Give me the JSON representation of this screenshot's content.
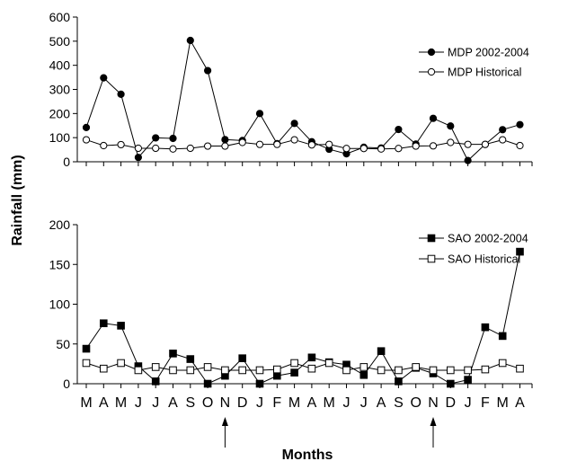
{
  "chart_data": [
    {
      "type": "line",
      "categories": [
        "M",
        "A",
        "M",
        "J",
        "J",
        "A",
        "S",
        "O",
        "N",
        "D",
        "J",
        "F",
        "M",
        "A",
        "M",
        "J",
        "J",
        "A",
        "S",
        "O",
        "N",
        "D",
        "J",
        "F",
        "M",
        "A"
      ],
      "ylim": [
        0,
        600
      ],
      "yticks": [
        0,
        100,
        200,
        300,
        400,
        500,
        600
      ],
      "series": [
        {
          "name": "MDP 2002-2004",
          "marker": "filled-circle",
          "values": [
            142,
            348,
            280,
            18,
            99,
            97,
            503,
            378,
            92,
            88,
            200,
            75,
            159,
            83,
            52,
            33,
            60,
            57,
            134,
            73,
            180,
            148,
            5,
            72,
            133,
            154
          ]
        },
        {
          "name": "MDP Historical",
          "marker": "open-circle",
          "values": [
            91,
            67,
            71,
            56,
            56,
            53,
            56,
            65,
            65,
            80,
            72,
            72,
            91,
            70,
            72,
            55,
            55,
            53,
            55,
            65,
            66,
            80,
            72,
            72,
            91,
            67
          ]
        }
      ],
      "legend_position": "top-right",
      "grid": false
    },
    {
      "type": "line",
      "categories": [
        "M",
        "A",
        "M",
        "J",
        "J",
        "A",
        "S",
        "O",
        "N",
        "D",
        "J",
        "F",
        "M",
        "A",
        "M",
        "J",
        "J",
        "A",
        "S",
        "O",
        "N",
        "D",
        "J",
        "F",
        "M",
        "A"
      ],
      "ylim": [
        0,
        200
      ],
      "yticks": [
        0,
        50,
        100,
        150,
        200
      ],
      "series": [
        {
          "name": "SAO 2002-2004",
          "marker": "filled-square",
          "values": [
            44,
            76,
            73,
            22,
            3,
            38,
            31,
            0,
            10,
            32,
            0,
            10,
            14,
            33,
            27,
            24,
            11,
            41,
            3,
            20,
            13,
            0,
            5,
            71,
            60,
            166
          ]
        },
        {
          "name": "SAO Historical",
          "marker": "open-square",
          "values": [
            26,
            19,
            26,
            17,
            21,
            17,
            17,
            21,
            17,
            17,
            17,
            18,
            26,
            19,
            26,
            17,
            21,
            17,
            17,
            21,
            17,
            17,
            17,
            18,
            26,
            19
          ]
        }
      ],
      "legend_position": "top-right",
      "grid": false
    }
  ],
  "ylabel": "Rainfall (mm)",
  "xlabel": "Months",
  "arrow_markers": [
    "N",
    "N"
  ],
  "arrow_category_indices": [
    8,
    20
  ],
  "colors": {
    "line": "#000000",
    "marker_fill": "#000000",
    "open_fill": "#ffffff"
  }
}
